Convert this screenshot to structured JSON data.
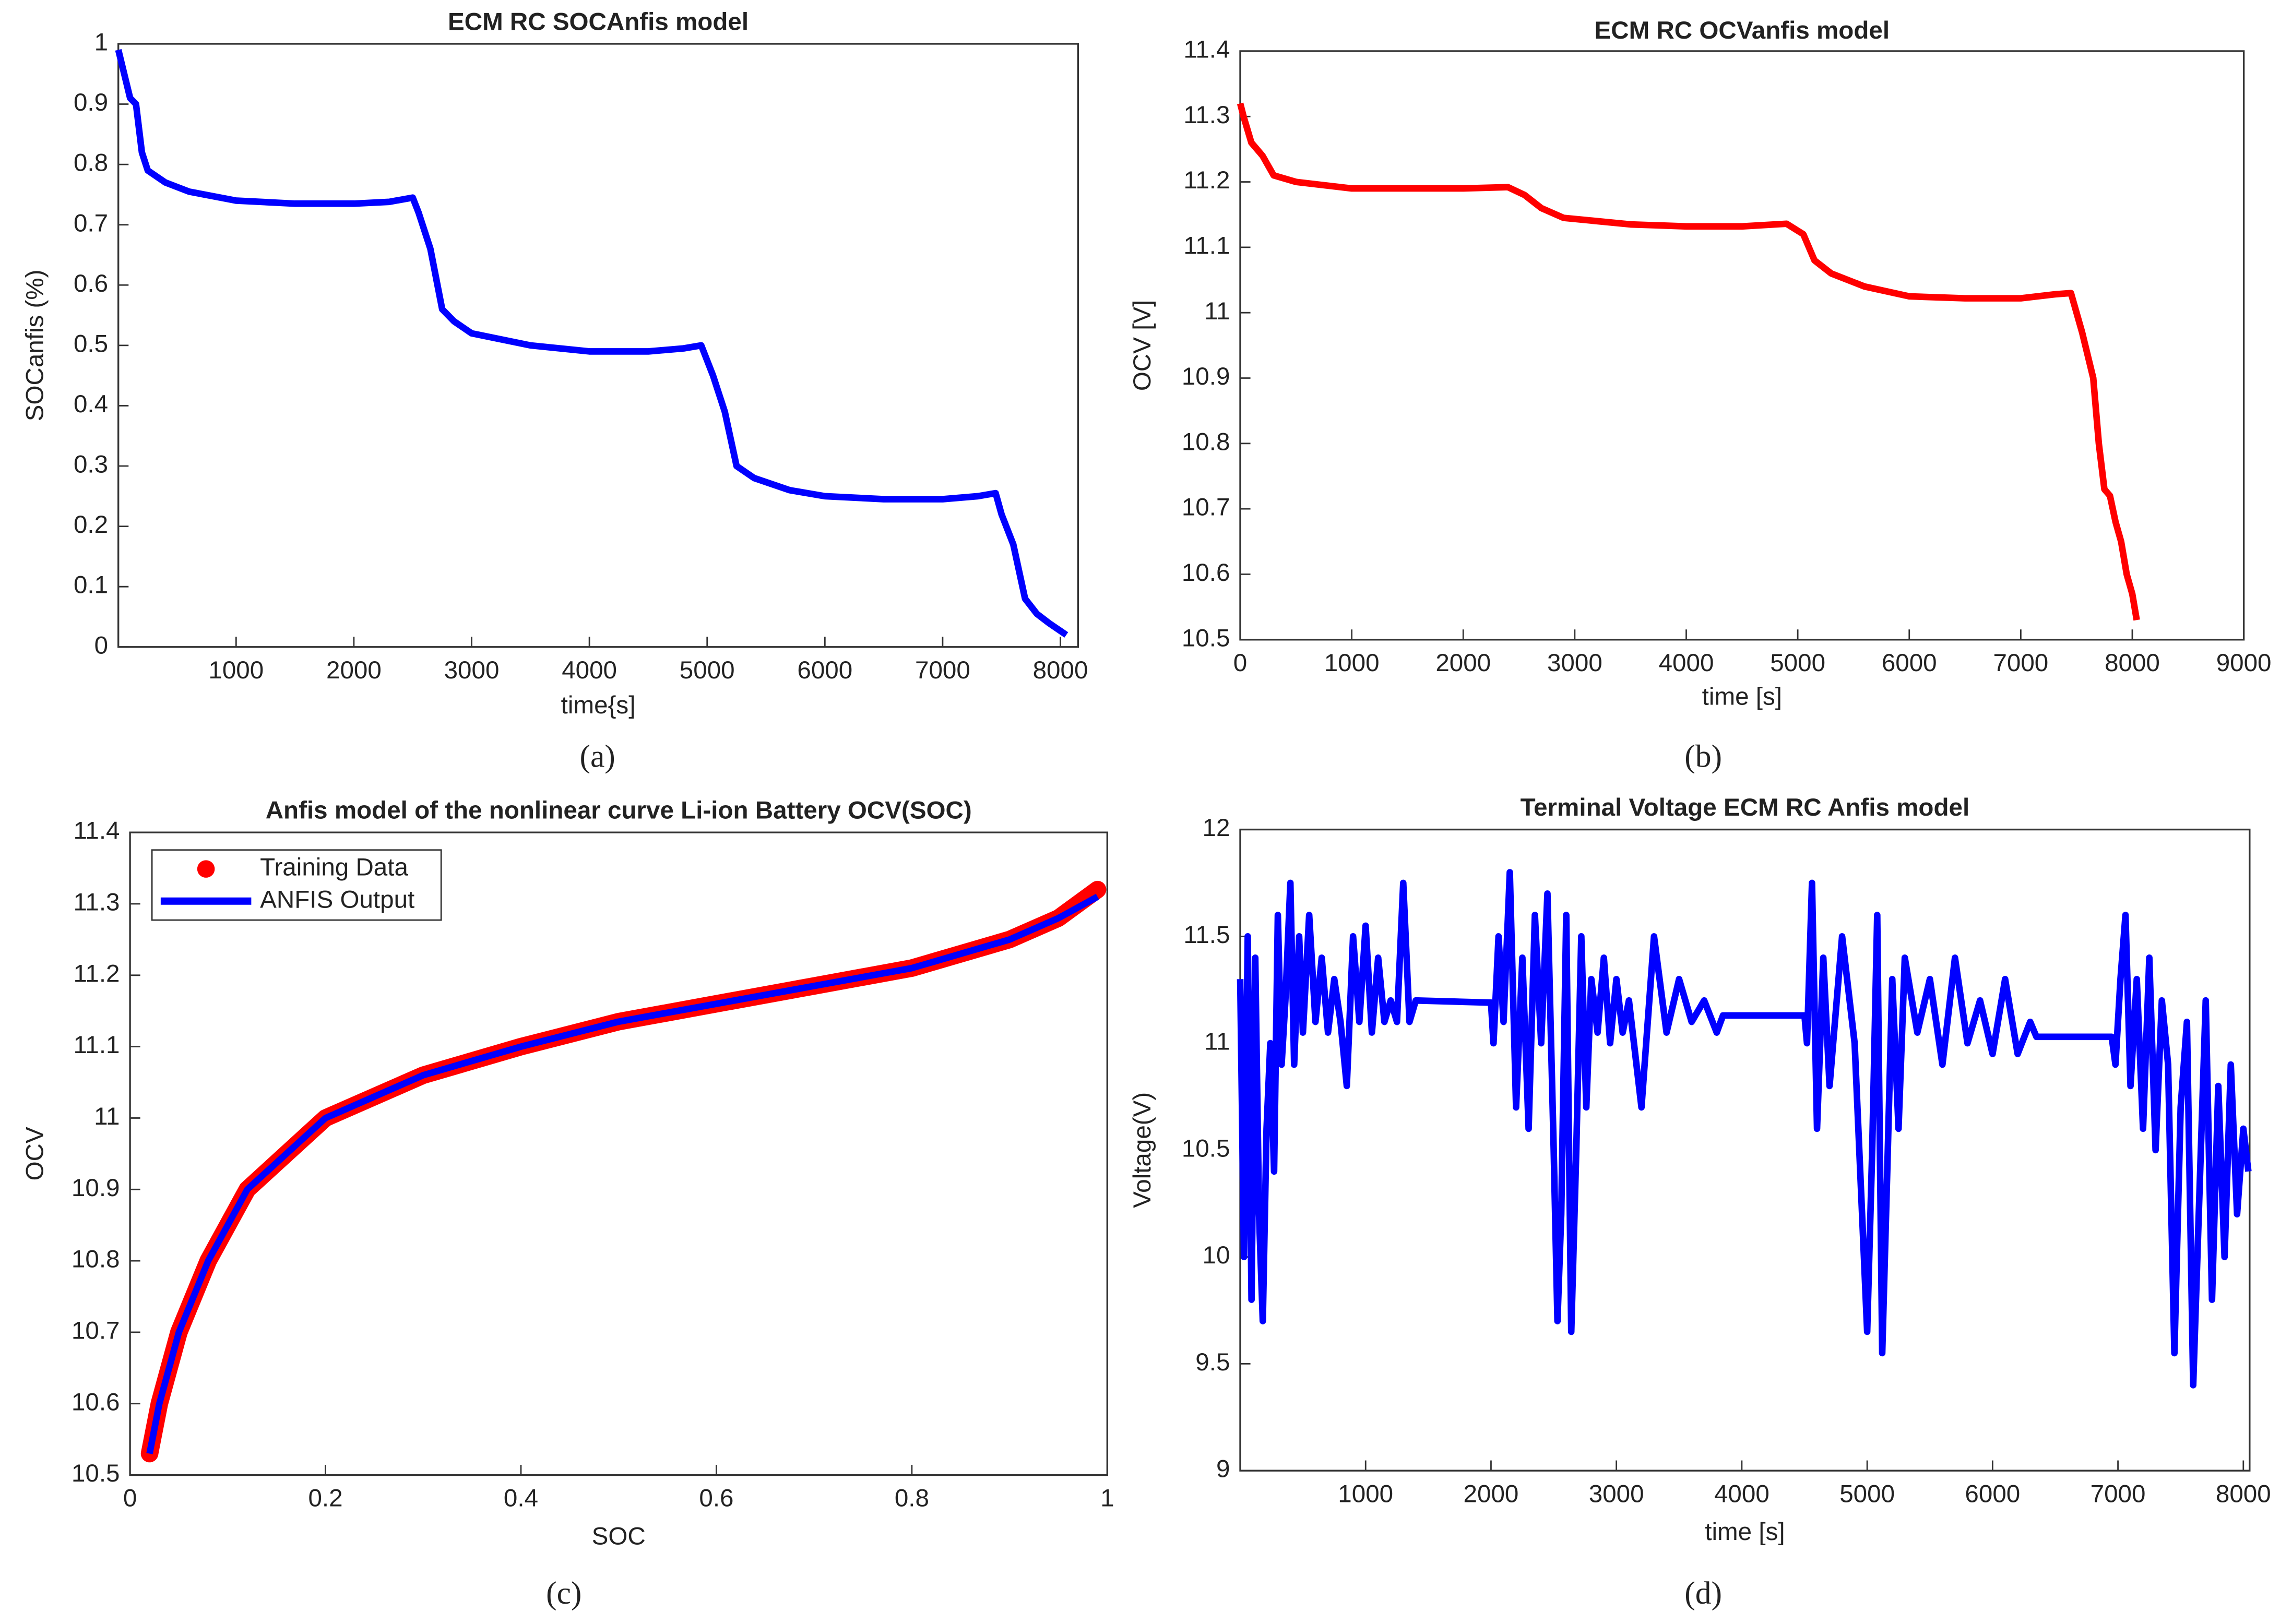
{
  "chart_data": [
    {
      "type": "line",
      "title": "ECM RC SOCAnfis model",
      "xlabel": "time{s]",
      "ylabel": "SOCanfis (%)",
      "caption": "(a)",
      "color": "#0000ff",
      "x": [
        0,
        50,
        100,
        150,
        200,
        250,
        400,
        600,
        1000,
        1500,
        2000,
        2300,
        2500,
        2550,
        2650,
        2750,
        2850,
        3000,
        3500,
        4000,
        4500,
        4800,
        4950,
        5050,
        5150,
        5250,
        5400,
        5700,
        6000,
        6500,
        7000,
        7300,
        7450,
        7500,
        7600,
        7700,
        7800,
        7900,
        8050
      ],
      "values": [
        0.99,
        0.95,
        0.91,
        0.9,
        0.82,
        0.79,
        0.77,
        0.755,
        0.74,
        0.735,
        0.735,
        0.738,
        0.745,
        0.72,
        0.66,
        0.56,
        0.54,
        0.52,
        0.5,
        0.49,
        0.49,
        0.495,
        0.5,
        0.45,
        0.39,
        0.3,
        0.28,
        0.26,
        0.25,
        0.245,
        0.245,
        0.25,
        0.255,
        0.22,
        0.17,
        0.08,
        0.055,
        0.04,
        0.02
      ],
      "xlim": [
        0,
        8150
      ],
      "xticks": [
        1000,
        2000,
        3000,
        4000,
        5000,
        6000,
        7000,
        8000
      ],
      "ylim": [
        0,
        1
      ],
      "yticks": [
        0,
        0.1,
        0.2,
        0.3,
        0.4,
        0.5,
        0.6,
        0.7,
        0.8,
        0.9,
        1
      ]
    },
    {
      "type": "line",
      "title": "ECM RC OCVanfis model",
      "xlabel": "time [s]",
      "ylabel": "OCV [V]",
      "caption": "(b)",
      "color": "#ff0000",
      "x": [
        0,
        30,
        100,
        200,
        300,
        500,
        1000,
        2000,
        2400,
        2550,
        2700,
        2900,
        3500,
        4000,
        4500,
        4900,
        5050,
        5150,
        5300,
        5600,
        6000,
        6500,
        7000,
        7300,
        7450,
        7550,
        7650,
        7700,
        7750,
        7800,
        7850,
        7900,
        7950,
        8000,
        8040
      ],
      "values": [
        11.32,
        11.3,
        11.26,
        11.24,
        11.21,
        11.2,
        11.19,
        11.19,
        11.192,
        11.18,
        11.16,
        11.145,
        11.135,
        11.132,
        11.132,
        11.136,
        11.12,
        11.08,
        11.06,
        11.04,
        11.025,
        11.022,
        11.022,
        11.028,
        11.03,
        10.97,
        10.9,
        10.8,
        10.73,
        10.72,
        10.68,
        10.65,
        10.6,
        10.57,
        10.53
      ],
      "xlim": [
        0,
        9000
      ],
      "xticks": [
        0,
        1000,
        2000,
        3000,
        4000,
        5000,
        6000,
        7000,
        8000,
        9000
      ],
      "ylim": [
        10.5,
        11.4
      ],
      "yticks": [
        10.5,
        10.6,
        10.7,
        10.8,
        10.9,
        11,
        11.1,
        11.2,
        11.3,
        11.4
      ]
    },
    {
      "type": "line",
      "title": "Anfis model of the nonlinear curve Li-ion Battery OCV(SOC)",
      "xlabel": "SOC",
      "ylabel": "OCV",
      "caption": "(c)",
      "legend": "northwest",
      "x": [
        0.02,
        0.03,
        0.05,
        0.08,
        0.12,
        0.2,
        0.3,
        0.4,
        0.5,
        0.6,
        0.7,
        0.8,
        0.9,
        0.95,
        0.99
      ],
      "series": [
        {
          "name": "Training Data",
          "color": "#ff0000",
          "marker": "o",
          "values": [
            10.53,
            10.6,
            10.7,
            10.8,
            10.9,
            11,
            11.06,
            11.1,
            11.135,
            11.16,
            11.185,
            11.21,
            11.25,
            11.28,
            11.32
          ]
        },
        {
          "name": "ANFIS Output",
          "color": "#0000ff",
          "values": [
            10.53,
            10.6,
            10.7,
            10.8,
            10.9,
            11,
            11.06,
            11.1,
            11.135,
            11.16,
            11.185,
            11.21,
            11.25,
            11.28,
            11.31
          ]
        }
      ],
      "xlim": [
        0,
        1
      ],
      "xticks": [
        0,
        0.2,
        0.4,
        0.6,
        0.8,
        1
      ],
      "ylim": [
        10.5,
        11.4
      ],
      "yticks": [
        10.5,
        10.6,
        10.7,
        10.8,
        10.9,
        11,
        11.1,
        11.2,
        11.3,
        11.4
      ]
    },
    {
      "type": "line",
      "title": "Terminal Voltage ECM RC Anfis model",
      "xlabel": "time [s]",
      "ylabel": "Voltage(V)",
      "caption": "(d)",
      "color": "#0000ff",
      "x": [
        0,
        30,
        60,
        90,
        120,
        150,
        180,
        210,
        240,
        270,
        300,
        330,
        360,
        400,
        430,
        470,
        500,
        550,
        600,
        650,
        700,
        750,
        800,
        850,
        900,
        950,
        1000,
        1050,
        1100,
        1150,
        1200,
        1250,
        1300,
        1350,
        1400,
        2000,
        2020,
        2060,
        2100,
        2150,
        2200,
        2250,
        2300,
        2350,
        2400,
        2450,
        2500,
        2530,
        2560,
        2600,
        2640,
        2680,
        2720,
        2760,
        2800,
        2850,
        2900,
        2950,
        3000,
        3050,
        3100,
        3200,
        3300,
        3400,
        3500,
        3600,
        3700,
        3800,
        3850,
        4500,
        4520,
        4560,
        4600,
        4650,
        4700,
        4800,
        4900,
        5000,
        5040,
        5080,
        5120,
        5160,
        5200,
        5250,
        5300,
        5400,
        5500,
        5600,
        5700,
        5800,
        5900,
        6000,
        6100,
        6200,
        6300,
        6350,
        6950,
        6980,
        7020,
        7060,
        7100,
        7150,
        7200,
        7250,
        7300,
        7350,
        7400,
        7450,
        7500,
        7550,
        7600,
        7650,
        7700,
        7750,
        7800,
        7850,
        7900,
        7950,
        8000,
        8040
      ],
      "values": [
        11.3,
        10,
        11.5,
        9.8,
        11.4,
        10.2,
        9.7,
        10.6,
        11,
        10.4,
        11.6,
        10.9,
        11.2,
        11.75,
        10.9,
        11.5,
        11.05,
        11.6,
        11.1,
        11.4,
        11.05,
        11.3,
        11.1,
        10.8,
        11.5,
        11.1,
        11.55,
        11.05,
        11.4,
        11.1,
        11.2,
        11.1,
        11.75,
        11.1,
        11.2,
        11.19,
        11,
        11.5,
        11.1,
        11.8,
        10.7,
        11.4,
        10.6,
        11.6,
        11,
        11.7,
        10.5,
        9.7,
        10.2,
        11.6,
        9.65,
        10.5,
        11.5,
        10.7,
        11.3,
        11.05,
        11.4,
        11,
        11.3,
        11.05,
        11.2,
        10.7,
        11.5,
        11.05,
        11.3,
        11.1,
        11.2,
        11.05,
        11.13,
        11.13,
        11,
        11.75,
        10.6,
        11.4,
        10.8,
        11.5,
        11,
        9.65,
        10.5,
        11.6,
        9.55,
        10.4,
        11.3,
        10.6,
        11.4,
        11.05,
        11.3,
        10.9,
        11.4,
        11,
        11.2,
        10.95,
        11.3,
        10.95,
        11.1,
        11.03,
        11.03,
        10.9,
        11.3,
        11.6,
        10.8,
        11.3,
        10.6,
        11.4,
        10.5,
        11.2,
        10.9,
        9.55,
        10.7,
        11.1,
        9.4,
        10.3,
        11.2,
        9.8,
        10.8,
        10,
        10.9,
        10.2,
        10.6,
        10.4
      ],
      "xlim": [
        0,
        8050
      ],
      "xticks": [
        1000,
        2000,
        3000,
        4000,
        5000,
        6000,
        7000,
        8000
      ],
      "ylim": [
        9,
        12
      ],
      "yticks": [
        9,
        9.5,
        10,
        10.5,
        11,
        11.5,
        12
      ]
    }
  ]
}
